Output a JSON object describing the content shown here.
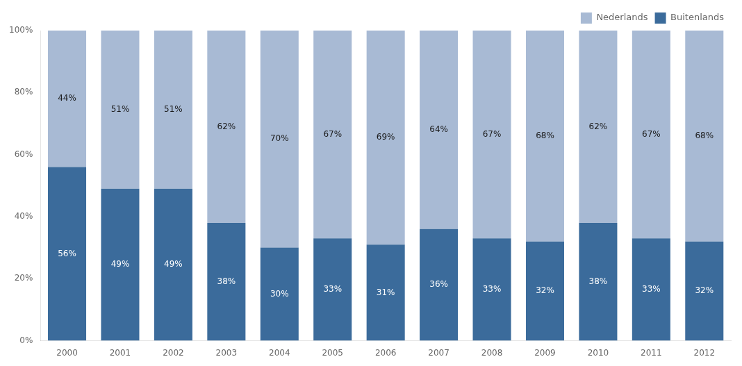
{
  "chart_data": {
    "type": "bar",
    "stacked": true,
    "data_labels": true,
    "grid": false,
    "legend": "upper right",
    "categories": [
      "2000",
      "2001",
      "2002",
      "2003",
      "2004",
      "2005",
      "2006",
      "2007",
      "2008",
      "2009",
      "2010",
      "2011",
      "2012"
    ],
    "series": [
      {
        "name": "Buitenlands",
        "color": "#3B6B9B",
        "values": [
          56,
          49,
          49,
          38,
          30,
          33,
          31,
          36,
          33,
          32,
          38,
          33,
          32
        ],
        "value_labels": [
          "56%",
          "49%",
          "49%",
          "38%",
          "30%",
          "33%",
          "31%",
          "36%",
          "33%",
          "32%",
          "38%",
          "33%",
          "32%"
        ]
      },
      {
        "name": "Nederlands",
        "color": "#A8BAD4",
        "values": [
          44,
          51,
          51,
          62,
          70,
          67,
          69,
          64,
          67,
          68,
          62,
          67,
          68
        ],
        "value_labels": [
          "44%",
          "51%",
          "51%",
          "62%",
          "70%",
          "67%",
          "69%",
          "64%",
          "67%",
          "68%",
          "62%",
          "67%",
          "68%"
        ]
      }
    ],
    "ylim": [
      0,
      100
    ],
    "yticks": [
      {
        "value": 0,
        "label": "0%"
      },
      {
        "value": 20,
        "label": "20%"
      },
      {
        "value": 40,
        "label": "40%"
      },
      {
        "value": 60,
        "label": "60%"
      },
      {
        "value": 80,
        "label": "80%"
      },
      {
        "value": 100,
        "label": "100%"
      }
    ]
  }
}
